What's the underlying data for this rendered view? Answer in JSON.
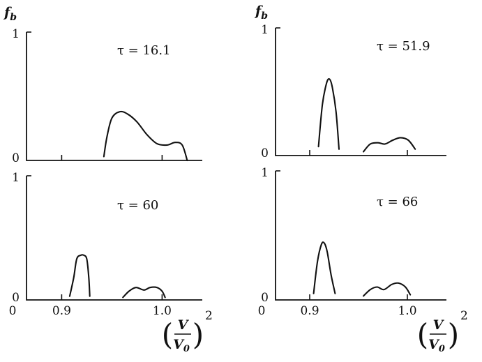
{
  "y_symbol": "f",
  "y_symbol_sub": "b",
  "x_symbol": {
    "numerator": "V",
    "denominator": "V",
    "denominator_sub": "0",
    "exponent": "2"
  },
  "chart_data": [
    {
      "type": "line",
      "position": "top-left",
      "annotation": "τ = 16.1",
      "ylim": [
        0,
        1
      ],
      "xlim": [
        0.865,
        1.04
      ],
      "y_ticks": [
        "0",
        "1"
      ],
      "x_ticks": [
        {
          "value": 0.9,
          "label": ""
        },
        {
          "value": 1.0,
          "label": ""
        }
      ],
      "segments": [
        [
          [
            0.942,
            0.03
          ],
          [
            0.945,
            0.18
          ],
          [
            0.95,
            0.33
          ],
          [
            0.958,
            0.38
          ],
          [
            0.966,
            0.36
          ],
          [
            0.975,
            0.3
          ],
          [
            0.985,
            0.2
          ],
          [
            0.995,
            0.13
          ],
          [
            1.005,
            0.12
          ],
          [
            1.013,
            0.14
          ],
          [
            1.02,
            0.12
          ],
          [
            1.025,
            0.0
          ]
        ]
      ]
    },
    {
      "type": "line",
      "position": "top-right",
      "annotation": "τ = 51.9",
      "ylim": [
        0,
        1
      ],
      "xlim": [
        0.865,
        1.04
      ],
      "y_ticks": [
        "0",
        "1"
      ],
      "x_ticks": [
        {
          "value": 0.9,
          "label": ""
        },
        {
          "value": 1.0,
          "label": ""
        }
      ],
      "segments": [
        [
          [
            0.909,
            0.07
          ],
          [
            0.913,
            0.4
          ],
          [
            0.917,
            0.56
          ],
          [
            0.92,
            0.6
          ],
          [
            0.923,
            0.54
          ],
          [
            0.927,
            0.34
          ],
          [
            0.93,
            0.05
          ]
        ],
        [
          [
            0.955,
            0.03
          ],
          [
            0.962,
            0.09
          ],
          [
            0.97,
            0.1
          ],
          [
            0.977,
            0.09
          ],
          [
            0.985,
            0.12
          ],
          [
            0.993,
            0.14
          ],
          [
            1.001,
            0.12
          ],
          [
            1.008,
            0.05
          ]
        ]
      ]
    },
    {
      "type": "line",
      "position": "bottom-left",
      "annotation": "τ = 60",
      "ylim": [
        0,
        1
      ],
      "xlim": [
        0.865,
        1.04
      ],
      "y_ticks": [
        "0",
        "1"
      ],
      "x_ticks": [
        {
          "value": 0.9,
          "label": "0.9"
        },
        {
          "value": 1.0,
          "label": "1.0"
        }
      ],
      "x_min_label": "0",
      "segments": [
        [
          [
            0.908,
            0.03
          ],
          [
            0.912,
            0.18
          ],
          [
            0.915,
            0.33
          ],
          [
            0.919,
            0.36
          ],
          [
            0.922,
            0.36
          ],
          [
            0.925,
            0.33
          ],
          [
            0.927,
            0.18
          ],
          [
            0.928,
            0.03
          ]
        ],
        [
          [
            0.961,
            0.02
          ],
          [
            0.967,
            0.07
          ],
          [
            0.974,
            0.1
          ],
          [
            0.982,
            0.08
          ],
          [
            0.988,
            0.1
          ],
          [
            0.995,
            0.1
          ],
          [
            1.0,
            0.07
          ],
          [
            1.003,
            0.02
          ]
        ]
      ]
    },
    {
      "type": "line",
      "position": "bottom-right",
      "annotation": "τ = 66",
      "ylim": [
        0,
        1
      ],
      "xlim": [
        0.865,
        1.04
      ],
      "y_ticks": [
        "0",
        "1"
      ],
      "x_ticks": [
        {
          "value": 0.9,
          "label": "0.9"
        },
        {
          "value": 1.0,
          "label": "1.0"
        }
      ],
      "x_min_label": "0",
      "segments": [
        [
          [
            0.904,
            0.05
          ],
          [
            0.908,
            0.3
          ],
          [
            0.912,
            0.43
          ],
          [
            0.915,
            0.44
          ],
          [
            0.918,
            0.37
          ],
          [
            0.922,
            0.19
          ],
          [
            0.926,
            0.05
          ]
        ],
        [
          [
            0.955,
            0.03
          ],
          [
            0.962,
            0.08
          ],
          [
            0.969,
            0.1
          ],
          [
            0.976,
            0.08
          ],
          [
            0.984,
            0.12
          ],
          [
            0.991,
            0.13
          ],
          [
            0.998,
            0.1
          ],
          [
            1.003,
            0.04
          ]
        ]
      ]
    }
  ]
}
